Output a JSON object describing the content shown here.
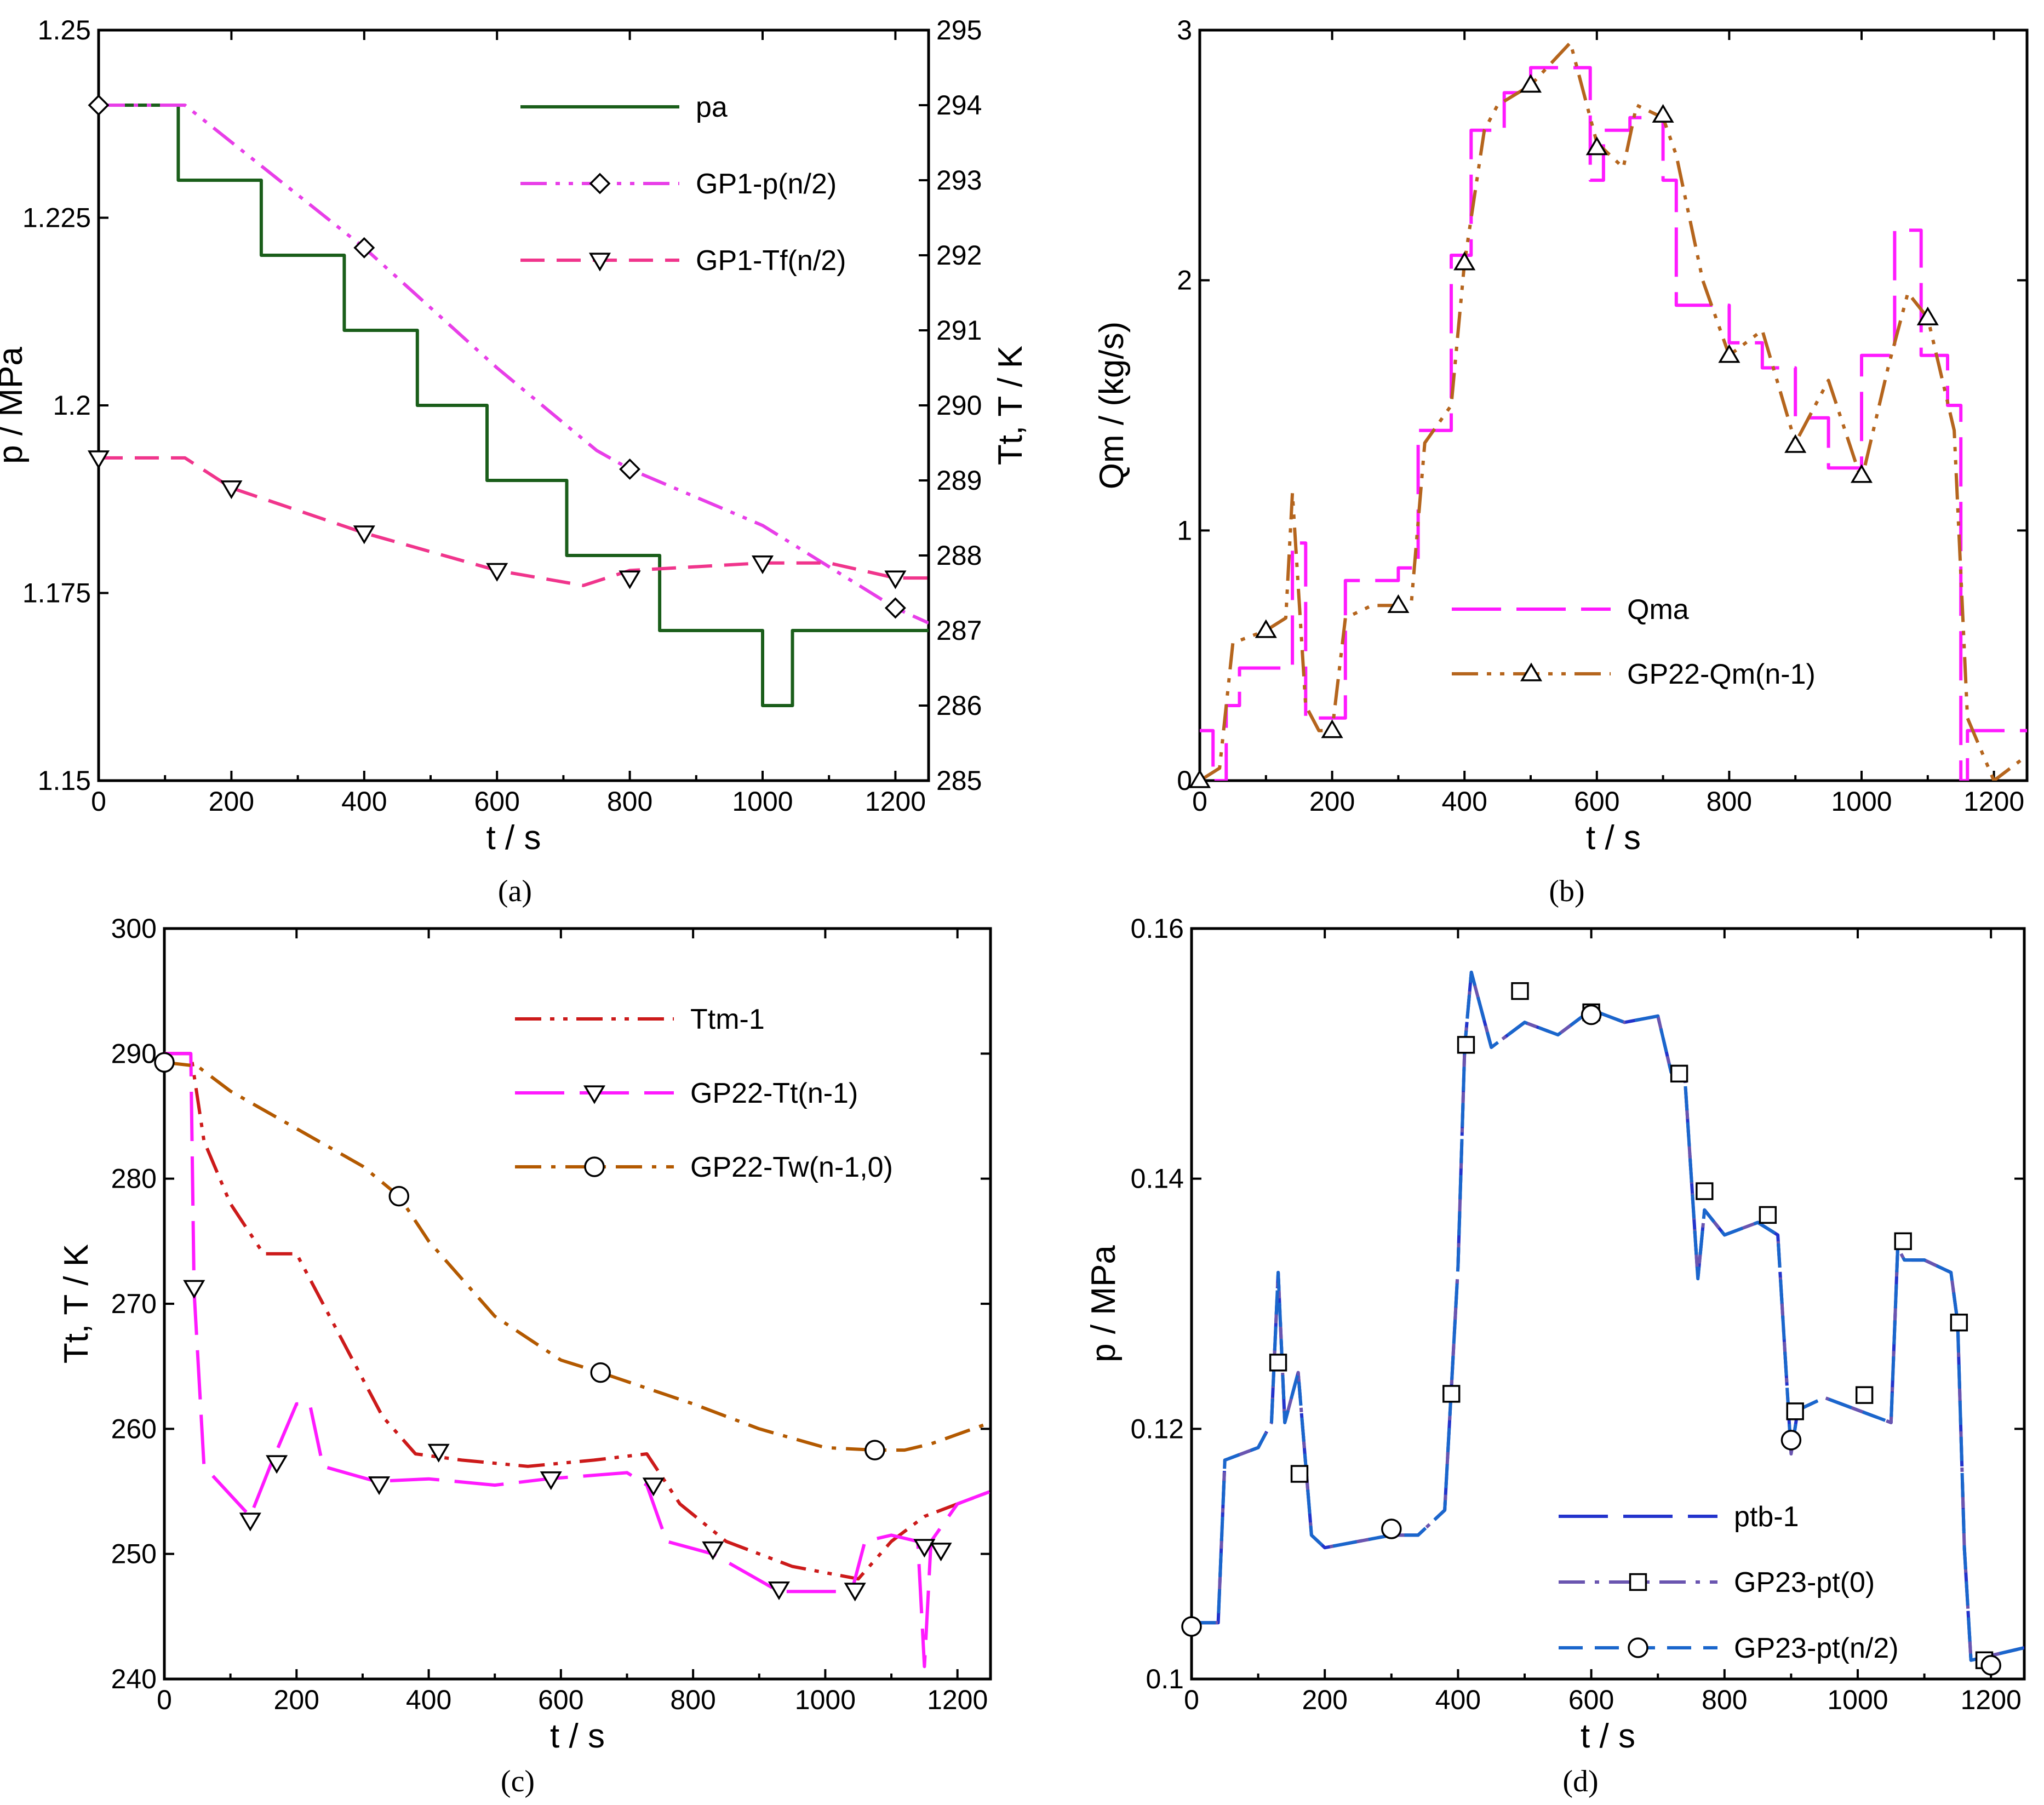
{
  "chart_data": [
    {
      "panel": "(a)",
      "type": "line",
      "xlabel": "t / s",
      "ylabel": "p / MPa",
      "y2label": "Tt, T / K",
      "xlim": [
        0,
        1250
      ],
      "ylim": [
        1.15,
        1.25
      ],
      "y2lim": [
        285,
        295
      ],
      "xticks": [
        "0",
        "200",
        "400",
        "600",
        "800",
        "1000",
        "1200"
      ],
      "yticks": [
        "1.15",
        "1.175",
        "1.2",
        "1.225",
        "1.25"
      ],
      "y2ticks": [
        "285",
        "286",
        "287",
        "288",
        "289",
        "290",
        "291",
        "292",
        "293",
        "294",
        "295"
      ],
      "series": [
        {
          "name": "pa",
          "color": "#1a5e1a",
          "dash": "solid",
          "marker": "none",
          "axis": "y",
          "x": [
            0,
            120,
            120,
            245,
            245,
            370,
            370,
            480,
            480,
            585,
            585,
            705,
            705,
            845,
            845,
            1000,
            1000,
            1045,
            1045,
            1250
          ],
          "y": [
            1.24,
            1.24,
            1.23,
            1.23,
            1.22,
            1.22,
            1.21,
            1.21,
            1.2,
            1.2,
            1.19,
            1.19,
            1.18,
            1.18,
            1.17,
            1.17,
            1.16,
            1.16,
            1.17,
            1.17
          ]
        },
        {
          "name": "GP1-p(n/2)",
          "color": "#e83ee8",
          "dash": "dashdotdot",
          "marker": "diamond",
          "axis": "y",
          "x": [
            0,
            130,
            400,
            600,
            750,
            800,
            1000,
            1200,
            1250
          ],
          "y": [
            1.24,
            1.24,
            1.221,
            1.205,
            1.194,
            1.1915,
            1.184,
            1.173,
            1.171
          ],
          "markers_x": [
            0,
            400,
            800,
            1200
          ],
          "markers_y": [
            1.24,
            1.221,
            1.1915,
            1.173
          ]
        },
        {
          "name": "GP1-Tf(n/2)",
          "color": "#f0358c",
          "dash": "dash",
          "marker": "triangle-down",
          "axis": "y2",
          "x": [
            0,
            130,
            200,
            400,
            600,
            730,
            800,
            1000,
            1100,
            1200,
            1250
          ],
          "y": [
            289.3,
            289.3,
            288.9,
            288.3,
            287.8,
            287.6,
            287.8,
            287.9,
            287.9,
            287.7,
            287.7
          ],
          "markers_x": [
            0,
            200,
            400,
            600,
            800,
            1000,
            1200
          ],
          "markers_y": [
            289.3,
            288.9,
            288.3,
            287.8,
            287.7,
            287.9,
            287.7
          ]
        }
      ]
    },
    {
      "panel": "(b)",
      "type": "line",
      "xlabel": "t / s",
      "ylabel": "Qm / (kg/s)",
      "xlim": [
        0,
        1250
      ],
      "ylim": [
        0,
        3
      ],
      "xticks": [
        "0",
        "200",
        "400",
        "600",
        "800",
        "1000",
        "1200"
      ],
      "yticks": [
        "0",
        "1",
        "2",
        "3"
      ],
      "series": [
        {
          "name": "Qma",
          "color": "#ff1aff",
          "dash": "longdash",
          "marker": "none",
          "x": [
            0,
            20,
            20,
            40,
            40,
            60,
            60,
            140,
            140,
            160,
            160,
            220,
            220,
            300,
            300,
            330,
            330,
            380,
            380,
            410,
            410,
            460,
            460,
            500,
            500,
            590,
            590,
            610,
            610,
            650,
            650,
            700,
            700,
            720,
            720,
            800,
            800,
            850,
            850,
            900,
            900,
            950,
            950,
            1000,
            1000,
            1050,
            1050,
            1090,
            1090,
            1130,
            1130,
            1150,
            1150,
            1160,
            1160,
            1250
          ],
          "y": [
            0.2,
            0.2,
            0.0,
            0.0,
            0.3,
            0.3,
            0.45,
            0.45,
            0.95,
            0.95,
            0.25,
            0.25,
            0.8,
            0.8,
            0.85,
            0.85,
            1.4,
            1.4,
            2.1,
            2.1,
            2.6,
            2.6,
            2.75,
            2.75,
            2.85,
            2.85,
            2.4,
            2.4,
            2.6,
            2.6,
            2.65,
            2.65,
            2.4,
            2.4,
            1.9,
            1.9,
            1.75,
            1.75,
            1.65,
            1.65,
            1.45,
            1.45,
            1.25,
            1.25,
            1.7,
            1.7,
            2.2,
            2.2,
            1.7,
            1.7,
            1.5,
            1.5,
            0.0,
            0.0,
            0.2,
            0.2
          ]
        },
        {
          "name": "GP22-Qm(n-1)",
          "color": "#b5651d",
          "dash": "dashdotdot",
          "marker": "triangle-up",
          "x": [
            0,
            30,
            50,
            100,
            130,
            140,
            160,
            180,
            200,
            220,
            260,
            300,
            320,
            340,
            380,
            400,
            430,
            450,
            500,
            560,
            600,
            640,
            660,
            700,
            720,
            760,
            800,
            850,
            900,
            950,
            1000,
            1040,
            1070,
            1100,
            1140,
            1160,
            1200,
            1250
          ],
          "y": [
            0.0,
            0.05,
            0.55,
            0.6,
            0.65,
            1.15,
            0.3,
            0.2,
            0.2,
            0.65,
            0.7,
            0.7,
            0.72,
            1.35,
            1.5,
            2.07,
            2.6,
            2.7,
            2.78,
            2.95,
            2.55,
            2.45,
            2.7,
            2.65,
            2.5,
            2.0,
            1.7,
            1.8,
            1.35,
            1.6,
            1.2,
            1.65,
            1.95,
            1.85,
            1.4,
            0.25,
            0.0,
            0.1
          ],
          "markers_x": [
            0,
            100,
            200,
            300,
            400,
            500,
            600,
            700,
            800,
            900,
            1000,
            1100
          ],
          "markers_y": [
            0.0,
            0.6,
            0.2,
            0.7,
            2.07,
            2.78,
            2.53,
            2.66,
            1.7,
            1.34,
            1.22,
            1.85
          ]
        }
      ],
      "legend_position": "center-right"
    },
    {
      "panel": "(c)",
      "type": "line",
      "xlabel": "t / s",
      "ylabel": "Tt, T / K",
      "xlim": [
        0,
        1250
      ],
      "ylim": [
        240,
        300
      ],
      "xticks": [
        "0",
        "200",
        "400",
        "600",
        "800",
        "1000",
        "1200"
      ],
      "yticks": [
        "240",
        "250",
        "260",
        "270",
        "280",
        "290",
        "300"
      ],
      "series": [
        {
          "name": "Ttm-1",
          "color": "#cc1a1a",
          "dash": "dashdotdot",
          "marker": "none",
          "x": [
            0,
            40,
            60,
            100,
            150,
            200,
            220,
            280,
            330,
            380,
            450,
            550,
            650,
            730,
            780,
            850,
            950,
            1050,
            1100,
            1150,
            1250
          ],
          "y": [
            290,
            290,
            283,
            278,
            274,
            274,
            272,
            266,
            261,
            258,
            257.5,
            257,
            257.5,
            258,
            254,
            251,
            249,
            248,
            251,
            253,
            255
          ]
        },
        {
          "name": "GP22-Tt(n-1)",
          "color": "#ff1aff",
          "dash": "longdash",
          "marker": "triangle-down",
          "x": [
            0,
            40,
            45,
            60,
            130,
            160,
            200,
            220,
            240,
            320,
            400,
            500,
            580,
            700,
            730,
            760,
            830,
            930,
            1040,
            1060,
            1100,
            1140,
            1150,
            1160,
            1200,
            1250
          ],
          "y": [
            290,
            290,
            271,
            257,
            253,
            257,
            262,
            262,
            257,
            255.8,
            256,
            255.5,
            256,
            256.5,
            255.5,
            251,
            250,
            247,
            247,
            251,
            251.5,
            251,
            241,
            251,
            254,
            255
          ],
          "markers_x": [
            45,
            130,
            170,
            325,
            415,
            585,
            740,
            830,
            930,
            1045,
            1150,
            1175
          ],
          "markers_y": [
            271.3,
            252.7,
            257.3,
            255.6,
            258.2,
            256,
            255.5,
            250.4,
            247.2,
            247.1,
            250.6,
            250.3
          ]
        },
        {
          "name": "GP22-Tw(n-1,0)",
          "color": "#b35900",
          "dash": "dashdot",
          "marker": "circle",
          "x": [
            0,
            50,
            100,
            200,
            300,
            355,
            400,
            500,
            600,
            660,
            800,
            900,
            1000,
            1075,
            1120,
            1160,
            1250
          ],
          "y": [
            289.3,
            289,
            287,
            284,
            281,
            278.6,
            275,
            269,
            265.5,
            264.5,
            262,
            260,
            258.5,
            258.3,
            258.3,
            258.8,
            260.5
          ],
          "markers_x": [
            0,
            355,
            660,
            1075
          ],
          "markers_y": [
            289.3,
            278.6,
            264.5,
            258.3
          ]
        }
      ]
    },
    {
      "panel": "(d)",
      "type": "line",
      "xlabel": "t / s",
      "ylabel": "p / MPa",
      "xlim": [
        0,
        1250
      ],
      "ylim": [
        0.1,
        0.16
      ],
      "xticks": [
        "0",
        "200",
        "400",
        "600",
        "800",
        "1000",
        "1200"
      ],
      "yticks": [
        "0.1",
        "0.12",
        "0.14",
        "0.16"
      ],
      "series": [
        {
          "name": "ptb-1",
          "color": "#2233cc",
          "dash": "longdash",
          "marker": "none",
          "x": [
            0,
            40,
            50,
            100,
            120,
            130,
            140,
            160,
            180,
            200,
            300,
            340,
            380,
            400,
            410,
            420,
            450,
            500,
            550,
            600,
            650,
            700,
            720,
            740,
            760,
            770,
            800,
            850,
            880,
            900,
            910,
            950,
            1000,
            1050,
            1060,
            1070,
            1100,
            1140,
            1150,
            1160,
            1170,
            1250
          ],
          "y": [
            0.1045,
            0.1045,
            0.1175,
            0.1185,
            0.1205,
            0.1325,
            0.1205,
            0.1245,
            0.1115,
            0.1105,
            0.1115,
            0.1115,
            0.1135,
            0.133,
            0.1505,
            0.1565,
            0.1505,
            0.1525,
            0.1515,
            0.1535,
            0.1525,
            0.153,
            0.1485,
            0.1485,
            0.132,
            0.1375,
            0.1355,
            0.1365,
            0.1355,
            0.118,
            0.1215,
            0.1225,
            0.1215,
            0.1205,
            0.1345,
            0.1335,
            0.1335,
            0.1325,
            0.1285,
            0.1105,
            0.1015,
            0.1025
          ]
        },
        {
          "name": "GP23-pt(0)",
          "color": "#6a55b0",
          "dash": "dashdot",
          "marker": "square",
          "x": [
            0,
            40,
            50,
            100,
            120,
            130,
            140,
            160,
            180,
            200,
            300,
            340,
            380,
            400,
            410,
            420,
            450,
            500,
            550,
            600,
            650,
            700,
            720,
            740,
            760,
            770,
            800,
            850,
            880,
            900,
            910,
            950,
            1000,
            1050,
            1060,
            1070,
            1100,
            1140,
            1150,
            1160,
            1170,
            1250
          ],
          "y": [
            0.1045,
            0.1045,
            0.1175,
            0.1185,
            0.1205,
            0.1325,
            0.1205,
            0.1245,
            0.1115,
            0.1105,
            0.1115,
            0.1115,
            0.1135,
            0.133,
            0.1505,
            0.1565,
            0.1505,
            0.1525,
            0.1515,
            0.1535,
            0.1525,
            0.153,
            0.1485,
            0.1485,
            0.132,
            0.1375,
            0.1355,
            0.1365,
            0.1355,
            0.118,
            0.1215,
            0.1225,
            0.1215,
            0.1205,
            0.1345,
            0.1335,
            0.1335,
            0.1325,
            0.1285,
            0.1105,
            0.1015,
            0.1025
          ],
          "markers_x": [
            130,
            162,
            390,
            412,
            493,
            600,
            732,
            770,
            865,
            906,
            1010,
            1068,
            1152,
            1190
          ],
          "markers_y": [
            0.1253,
            0.1164,
            0.1228,
            0.1507,
            0.155,
            0.1533,
            0.1484,
            0.139,
            0.1371,
            0.1214,
            0.1227,
            0.135,
            0.1285,
            0.1015
          ]
        },
        {
          "name": "GP23-pt(n/2)",
          "color": "#1a66cc",
          "dash": "dash",
          "marker": "circle",
          "x": [
            0,
            40,
            50,
            100,
            120,
            130,
            140,
            160,
            180,
            200,
            300,
            340,
            380,
            400,
            410,
            420,
            450,
            500,
            550,
            600,
            650,
            700,
            720,
            740,
            760,
            770,
            800,
            850,
            880,
            900,
            910,
            950,
            1000,
            1050,
            1060,
            1070,
            1100,
            1140,
            1150,
            1160,
            1170,
            1250
          ],
          "y": [
            0.1045,
            0.1045,
            0.1175,
            0.1185,
            0.1205,
            0.1325,
            0.1205,
            0.1245,
            0.1115,
            0.1105,
            0.1115,
            0.1115,
            0.1135,
            0.133,
            0.1505,
            0.1565,
            0.1505,
            0.1525,
            0.1515,
            0.1535,
            0.1525,
            0.153,
            0.1485,
            0.1485,
            0.132,
            0.1375,
            0.1355,
            0.1365,
            0.1355,
            0.118,
            0.1215,
            0.1225,
            0.1215,
            0.1205,
            0.1345,
            0.1335,
            0.1335,
            0.1325,
            0.1285,
            0.1105,
            0.1015,
            0.1025
          ],
          "markers_x": [
            0,
            300,
            600,
            900,
            1200
          ],
          "markers_y": [
            0.1042,
            0.112,
            0.1531,
            0.1191,
            0.1011
          ]
        }
      ]
    }
  ]
}
